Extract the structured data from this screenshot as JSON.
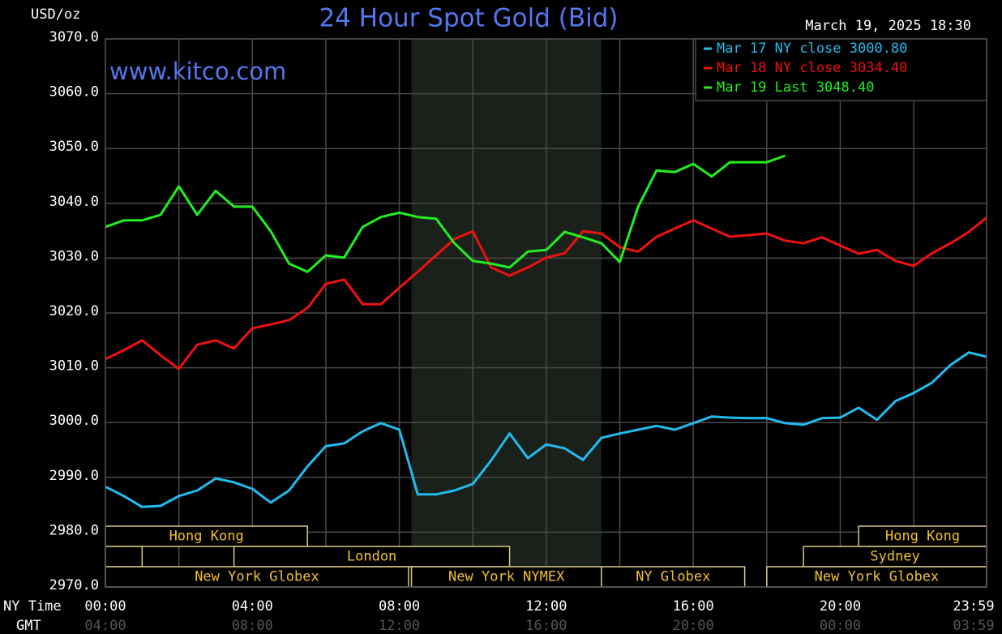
{
  "chart_data": {
    "type": "line",
    "title": "24 Hour Spot Gold (Bid)",
    "y_unit": "USD/oz",
    "date": "March 19, 2025 18:30",
    "site": "www.kitco.com",
    "x_row_label": "NY Time",
    "x2_row_label": "GMT",
    "xlim": [
      0,
      23.983
    ],
    "xticks": [
      {
        "value": 0,
        "label": "00:00"
      },
      {
        "value": 4,
        "label": "04:00"
      },
      {
        "value": 8,
        "label": "08:00"
      },
      {
        "value": 12,
        "label": "12:00"
      },
      {
        "value": 16,
        "label": "16:00"
      },
      {
        "value": 20,
        "label": "20:00"
      },
      {
        "value": 23.983,
        "label": "23:59"
      }
    ],
    "x2tick_labels": [
      "04:00",
      "08:00",
      "12:00",
      "16:00",
      "20:00",
      "00:00",
      "03:59"
    ],
    "x_minor_ticks": [
      2,
      6,
      10,
      14,
      18,
      22
    ],
    "ylim": [
      2970,
      3070
    ],
    "yticks": [
      {
        "value": 2970,
        "label": "2970.0"
      },
      {
        "value": 2980,
        "label": "2980.0"
      },
      {
        "value": 2990,
        "label": "2990.0"
      },
      {
        "value": 3000,
        "label": "3000.0"
      },
      {
        "value": 3010,
        "label": "3010.0"
      },
      {
        "value": 3020,
        "label": "3020.0"
      },
      {
        "value": 3030,
        "label": "3030.0"
      },
      {
        "value": 3040,
        "label": "3040.0"
      },
      {
        "value": 3050,
        "label": "3050.0"
      },
      {
        "value": 3060,
        "label": "3060.0"
      },
      {
        "value": 3070,
        "label": "3070.0"
      }
    ],
    "grid": true,
    "highlight": [
      8.33,
      13.5
    ],
    "highlight_color": "#1a201a",
    "legend": "top-right",
    "x": [
      0,
      0.5,
      1,
      1.5,
      2,
      2.5,
      3,
      3.5,
      4,
      4.5,
      5,
      5.5,
      6,
      6.5,
      7,
      7.5,
      8,
      8.5,
      9,
      9.5,
      10,
      10.5,
      11,
      11.5,
      12,
      12.5,
      13,
      13.5,
      14,
      14.5,
      15,
      15.5,
      16,
      16.5,
      17,
      17.5,
      18,
      18.5,
      19,
      19.5,
      20,
      20.5,
      21,
      21.5,
      22,
      22.5,
      23,
      23.5,
      23.983
    ],
    "series": [
      {
        "name": "Mar 17 NY close 3000.80",
        "color": "#22bbee",
        "values": [
          2988.3,
          2986.6,
          2984.6,
          2984.8,
          2986.6,
          2987.6,
          2989.8,
          2989.1,
          2987.9,
          2985.4,
          2987.6,
          2992.0,
          2995.7,
          2996.2,
          2998.4,
          2999.9,
          2998.7,
          2986.9,
          2986.9,
          2987.6,
          2988.8,
          2993.1,
          2998.0,
          2993.5,
          2996.0,
          2995.3,
          2993.2,
          2997.2,
          2998.0,
          2998.7,
          2999.4,
          2998.7,
          2999.9,
          3001.1,
          3000.9,
          3000.8,
          3000.8,
          2999.9,
          2999.6,
          3000.8,
          3000.9,
          3002.7,
          3000.5,
          3003.9,
          3005.4,
          3007.3,
          3010.5,
          3012.8,
          3012.0
        ]
      },
      {
        "name": "Mar 18 NY close 3034.40",
        "color": "#ee1111",
        "values": [
          3011.6,
          3013.2,
          3015.0,
          3012.3,
          3009.8,
          3014.2,
          3015.0,
          3013.5,
          3017.2,
          3017.9,
          3018.7,
          3020.9,
          3025.3,
          3026.1,
          3021.6,
          3021.6,
          3024.6,
          3027.5,
          3030.5,
          3033.5,
          3034.9,
          3028.3,
          3026.8,
          3028.3,
          3030.1,
          3030.9,
          3034.9,
          3034.5,
          3032.0,
          3031.2,
          3033.9,
          3035.4,
          3036.9,
          3035.4,
          3033.9,
          3034.2,
          3034.5,
          3033.2,
          3032.7,
          3033.8,
          3032.3,
          3030.8,
          3031.5,
          3029.5,
          3028.6,
          3030.9,
          3032.7,
          3034.8,
          3037.4
        ]
      },
      {
        "name": "Mar 19 Last 3048.40",
        "color": "#22ee22",
        "values": [
          3035.7,
          3036.9,
          3036.9,
          3037.9,
          3043.1,
          3037.9,
          3042.3,
          3039.4,
          3039.4,
          3034.9,
          3029.0,
          3027.5,
          3030.5,
          3030.1,
          3035.7,
          3037.5,
          3038.3,
          3037.5,
          3037.2,
          3032.7,
          3029.5,
          3029.0,
          3028.3,
          3031.2,
          3031.5,
          3034.8,
          3033.8,
          3032.7,
          3029.3,
          3039.4,
          3046.0,
          3045.7,
          3047.2,
          3044.9,
          3047.5,
          3047.5,
          3047.5,
          3048.7,
          null,
          null,
          null,
          null,
          null,
          null,
          null,
          null,
          null,
          null,
          null
        ]
      }
    ],
    "session_rows": [
      [
        {
          "label": "Hong Kong",
          "start": 0,
          "end": 5.5
        },
        {
          "label": "Hong Kong",
          "start": 20.5,
          "end": 23.983
        }
      ],
      [
        {
          "label": null,
          "start": 0,
          "end": 1
        },
        {
          "label": "London",
          "start": 3.5,
          "end": 11
        },
        {
          "label": "Sydney",
          "start": 19,
          "end": 23.983
        }
      ],
      [
        {
          "label": "New York Globex",
          "start": 0,
          "end": 8.25
        },
        {
          "label": "New York NYMEX",
          "start": 8.33,
          "end": 13.5
        },
        {
          "label": "NY Globex",
          "start": 13.5,
          "end": 17.4
        },
        {
          "label": "New York Globex",
          "start": 18,
          "end": 23.983
        }
      ]
    ]
  }
}
